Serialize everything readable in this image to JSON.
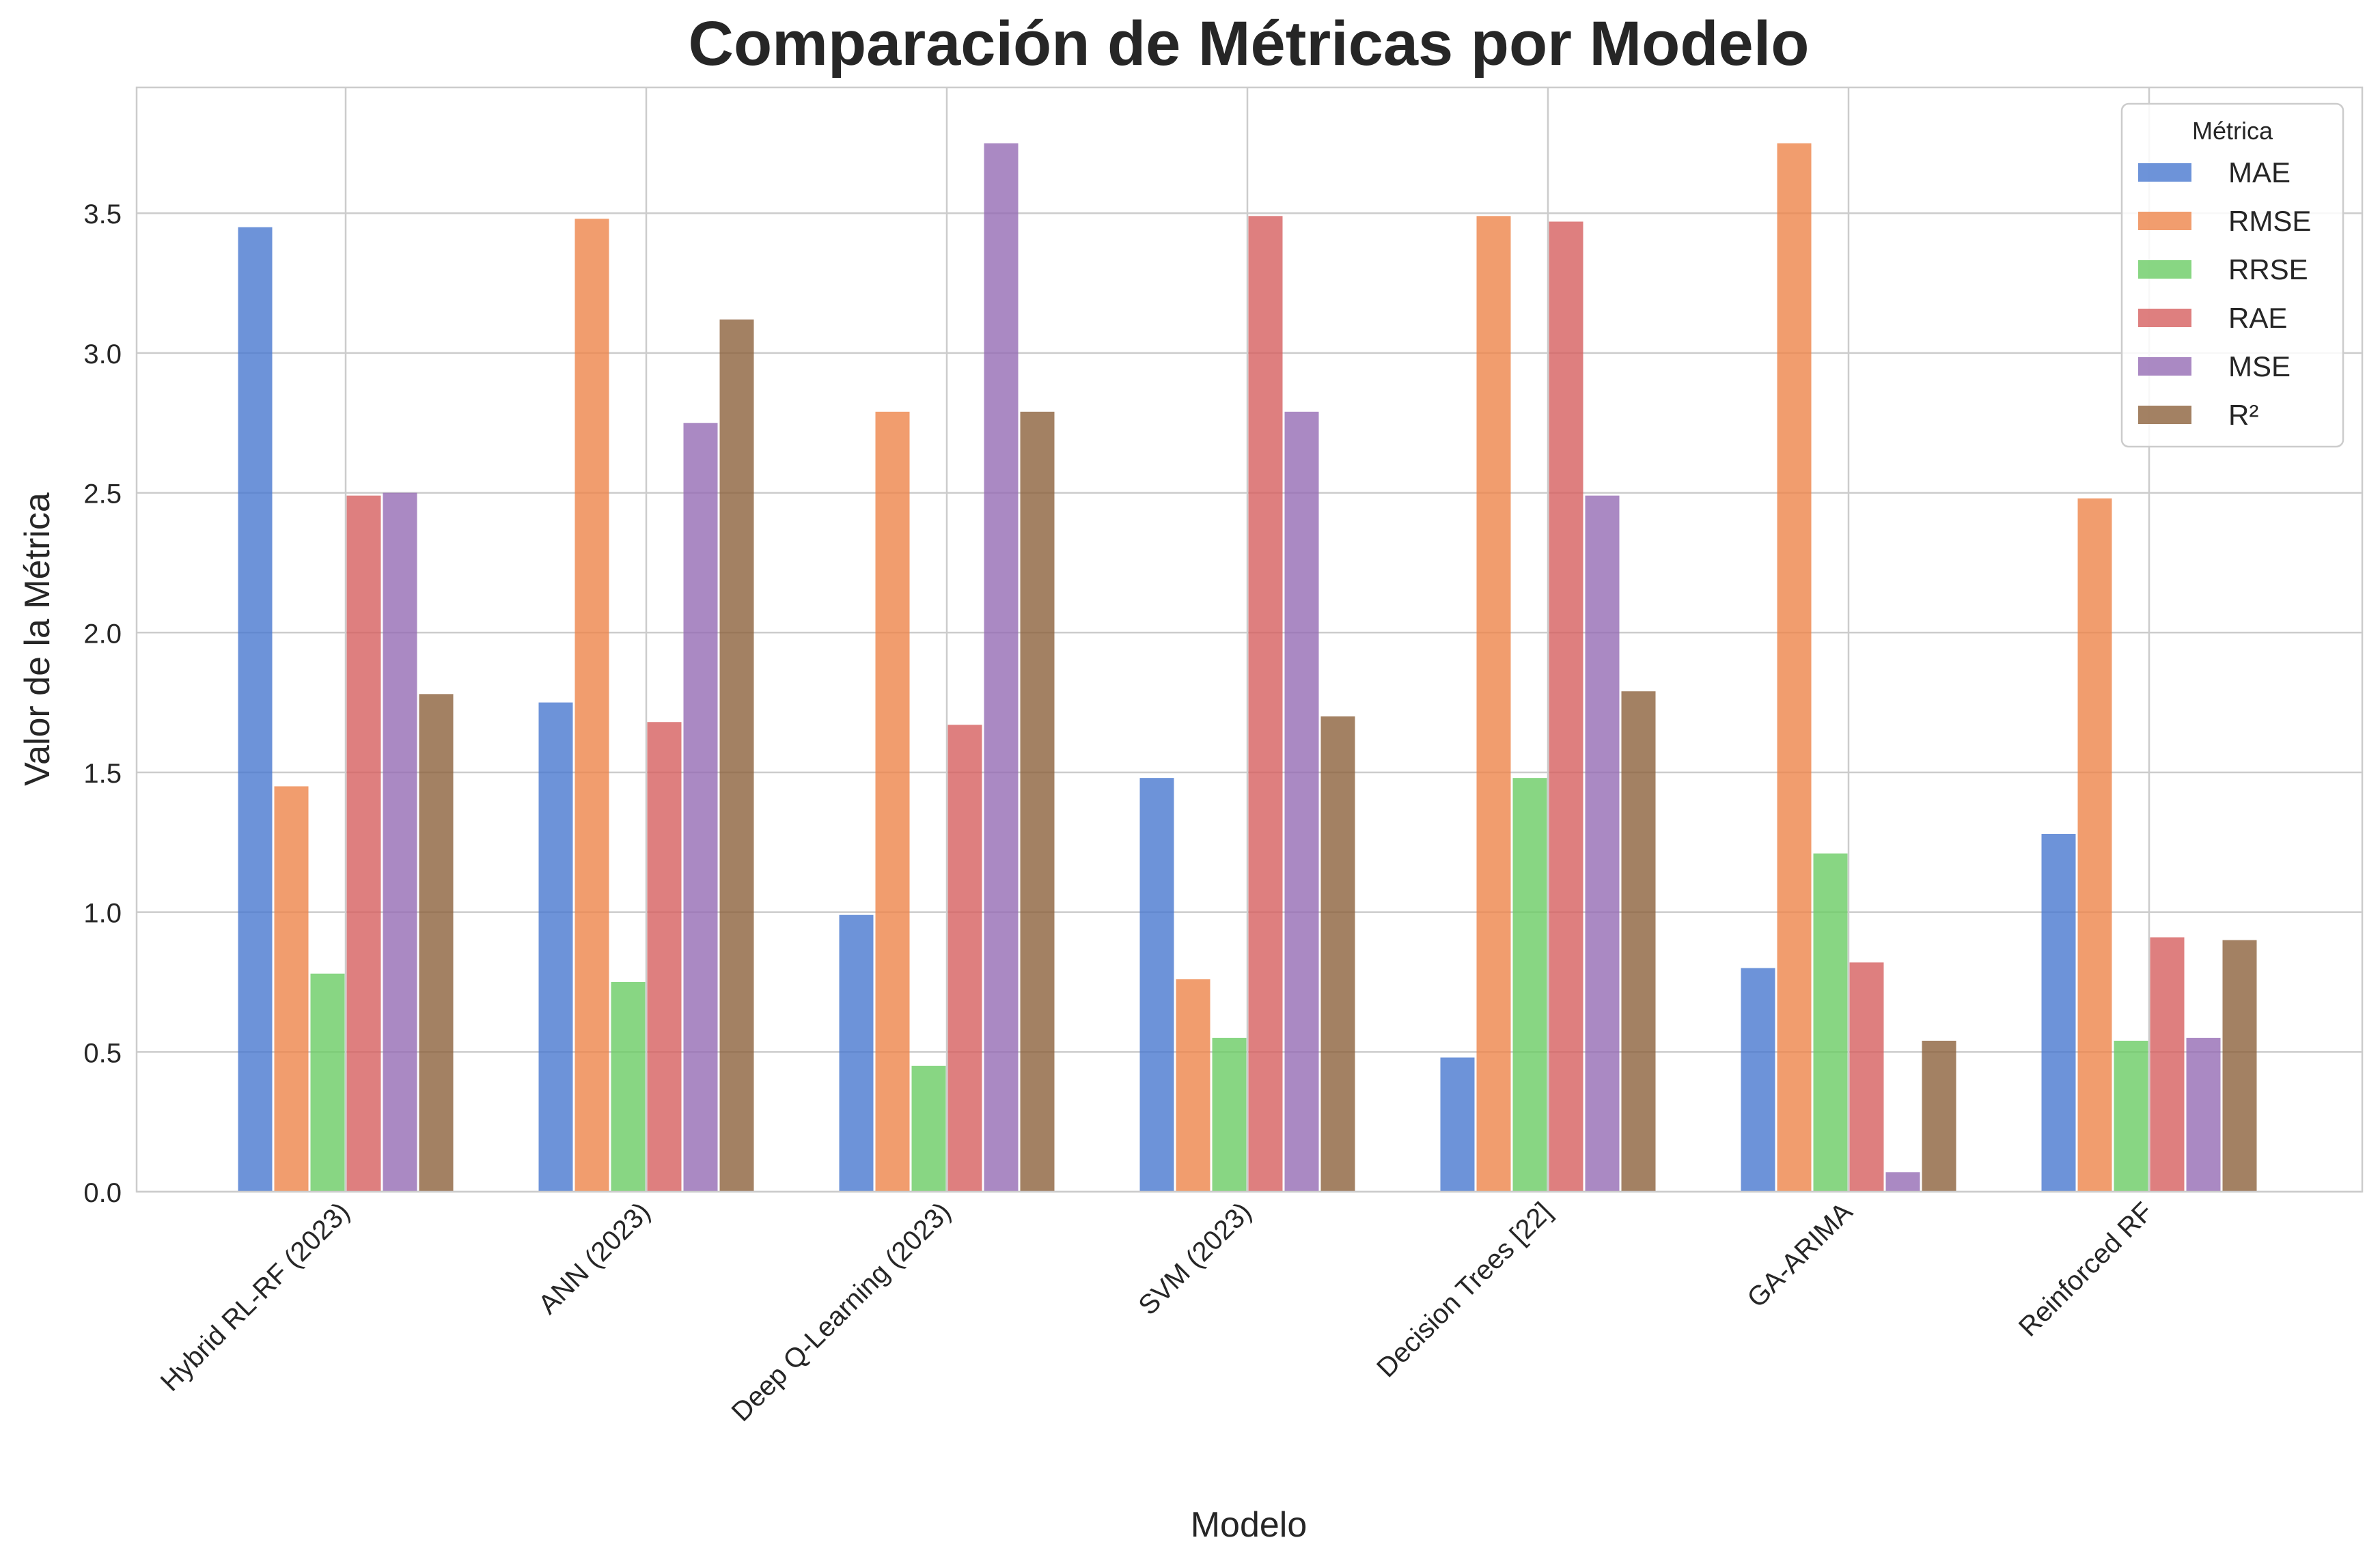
{
  "chart_data": {
    "type": "bar",
    "title": "Comparación de Métricas por Modelo",
    "xlabel": "Modelo",
    "ylabel": "Valor de la Métrica",
    "ylim": [
      0,
      3.95
    ],
    "yticks": [
      "0.0",
      "0.5",
      "1.0",
      "1.5",
      "2.0",
      "2.5",
      "3.0",
      "3.5"
    ],
    "grid": true,
    "legend_title": "Métrica",
    "legend_position": "top-right",
    "categories": [
      "Hybrid RL-RF (2023)",
      "ANN (2023)",
      "Deep Q-Learning (2023)",
      "SVM (2023)",
      "Decision Trees [22]",
      "GA-ARIMA",
      "Reinforced RF"
    ],
    "series": [
      {
        "name": "MAE",
        "color": "#4878d0",
        "values": [
          3.45,
          1.75,
          0.99,
          1.48,
          0.48,
          0.8,
          1.28
        ]
      },
      {
        "name": "RMSE",
        "color": "#ee854a",
        "values": [
          1.45,
          3.48,
          2.79,
          0.76,
          3.49,
          3.75,
          2.48
        ]
      },
      {
        "name": "RRSE",
        "color": "#6acc64",
        "values": [
          0.78,
          0.75,
          0.45,
          0.55,
          1.48,
          1.21,
          0.54
        ]
      },
      {
        "name": "RAE",
        "color": "#d65f5f",
        "values": [
          2.49,
          1.68,
          1.67,
          3.49,
          3.47,
          0.82,
          0.91
        ]
      },
      {
        "name": "MSE",
        "color": "#956cb4",
        "values": [
          2.5,
          2.75,
          3.75,
          2.79,
          2.49,
          0.07,
          0.55
        ]
      },
      {
        "name": "R²",
        "color": "#8c613c",
        "values": [
          1.78,
          3.12,
          2.79,
          1.7,
          1.79,
          0.54,
          0.9
        ]
      }
    ]
  }
}
